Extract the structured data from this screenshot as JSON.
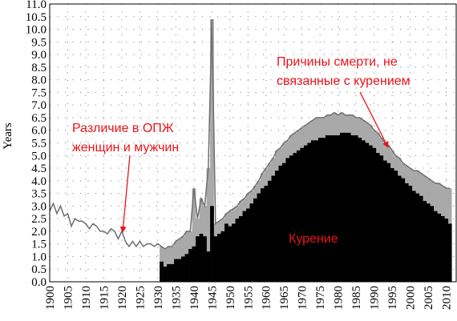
{
  "chart_data": {
    "type": "bar",
    "y_label": "Years",
    "xlim": [
      1900,
      2013
    ],
    "xticks": [
      1900,
      1905,
      1910,
      1915,
      1920,
      1925,
      1930,
      1935,
      1940,
      1945,
      1950,
      1955,
      1960,
      1965,
      1970,
      1975,
      1980,
      1985,
      1990,
      1995,
      2000,
      2005,
      2010
    ],
    "ylim": [
      0,
      11
    ],
    "yticks": [
      {
        "value": 0,
        "label": "0.0"
      },
      {
        "value": 0.5,
        "label": "0.5"
      },
      {
        "value": 1,
        "label": "1.0"
      },
      {
        "value": 1.5,
        "label": "1.5"
      },
      {
        "value": 2,
        "label": "2.0"
      },
      {
        "value": 2.5,
        "label": "2.5"
      },
      {
        "value": 3,
        "label": "3.0"
      },
      {
        "value": 3.5,
        "label": "3.5"
      },
      {
        "value": 4,
        "label": "4.0"
      },
      {
        "value": 4.5,
        "label": "4.5"
      },
      {
        "value": 5,
        "label": "5.0"
      },
      {
        "value": 5.5,
        "label": "5.5"
      },
      {
        "value": 6,
        "label": "6.0"
      },
      {
        "value": 6.5,
        "label": "6.5"
      },
      {
        "value": 7,
        "label": "7.0"
      },
      {
        "value": 7.5,
        "label": "7.5"
      },
      {
        "value": 8,
        "label": "8.0"
      },
      {
        "value": 8.5,
        "label": "8.5"
      },
      {
        "value": 9,
        "label": "9.0"
      },
      {
        "value": 9.5,
        "label": "9.5"
      },
      {
        "value": 10,
        "label": "10.0"
      },
      {
        "value": 10.5,
        "label": "10.5"
      },
      {
        "value": 11,
        "label": "11.0"
      }
    ],
    "grid": true,
    "x": [
      1900,
      1901,
      1902,
      1903,
      1904,
      1905,
      1906,
      1907,
      1908,
      1909,
      1910,
      1911,
      1912,
      1913,
      1914,
      1915,
      1916,
      1917,
      1918,
      1919,
      1920,
      1921,
      1922,
      1923,
      1924,
      1925,
      1926,
      1927,
      1928,
      1929,
      1930,
      1931,
      1932,
      1933,
      1934,
      1935,
      1936,
      1937,
      1938,
      1939,
      1940,
      1941,
      1942,
      1943,
      1944,
      1945,
      1946,
      1947,
      1948,
      1949,
      1950,
      1951,
      1952,
      1953,
      1954,
      1955,
      1956,
      1957,
      1958,
      1959,
      1960,
      1961,
      1962,
      1963,
      1964,
      1965,
      1966,
      1967,
      1968,
      1969,
      1970,
      1971,
      1972,
      1973,
      1974,
      1975,
      1976,
      1977,
      1978,
      1979,
      1980,
      1981,
      1982,
      1983,
      1984,
      1985,
      1986,
      1987,
      1988,
      1989,
      1990,
      1991,
      1992,
      1993,
      1994,
      1995,
      1996,
      1997,
      1998,
      1999,
      2000,
      2001,
      2002,
      2003,
      2004,
      2005,
      2006,
      2007,
      2008,
      2009,
      2010,
      2011
    ],
    "series": [
      {
        "color": "#a9a9a9",
        "line_color": "#6e6e6e",
        "values": [
          2.8,
          3.1,
          2.7,
          3.0,
          2.6,
          2.7,
          2.2,
          2.5,
          2.4,
          2.4,
          2.3,
          2.1,
          2.3,
          2.2,
          2.0,
          2.0,
          1.9,
          2.1,
          2.0,
          1.7,
          2.0,
          1.6,
          1.4,
          1.6,
          1.4,
          1.6,
          1.4,
          1.5,
          1.5,
          1.4,
          1.5,
          1.4,
          1.3,
          1.4,
          1.4,
          1.6,
          1.7,
          1.8,
          2.0,
          2.0,
          3.7,
          2.5,
          3.3,
          3.0,
          4.5,
          10.4,
          2.3,
          2.4,
          2.5,
          2.7,
          2.8,
          2.9,
          3.0,
          3.2,
          3.3,
          3.5,
          3.6,
          3.8,
          4.0,
          4.3,
          4.5,
          4.7,
          4.9,
          5.2,
          5.3,
          5.5,
          5.6,
          5.8,
          5.9,
          6.0,
          6.1,
          6.2,
          6.3,
          6.4,
          6.5,
          6.5,
          6.5,
          6.6,
          6.6,
          6.7,
          6.6,
          6.7,
          6.6,
          6.6,
          6.6,
          6.5,
          6.5,
          6.4,
          6.3,
          6.2,
          6.0,
          5.9,
          5.7,
          5.5,
          5.4,
          5.2,
          5.0,
          4.9,
          4.7,
          4.6,
          4.5,
          4.4,
          4.4,
          4.3,
          4.2,
          4.1,
          4.0,
          3.9,
          3.9,
          3.8,
          3.7,
          3.7
        ]
      },
      {
        "color": "#000000",
        "values": [
          null,
          null,
          null,
          null,
          null,
          null,
          null,
          null,
          null,
          null,
          null,
          null,
          null,
          null,
          null,
          null,
          null,
          null,
          null,
          null,
          null,
          null,
          null,
          null,
          null,
          null,
          null,
          null,
          null,
          null,
          null,
          0.8,
          0.6,
          0.7,
          0.7,
          0.9,
          0.9,
          1.0,
          1.1,
          1.3,
          1.4,
          1.8,
          1.9,
          1.8,
          1.2,
          3.0,
          1.8,
          1.9,
          2.0,
          2.3,
          2.2,
          2.3,
          2.5,
          2.6,
          2.8,
          2.9,
          3.1,
          3.3,
          3.5,
          3.7,
          3.8,
          4.0,
          4.2,
          4.4,
          4.6,
          4.7,
          4.9,
          5.0,
          5.1,
          5.2,
          5.3,
          5.4,
          5.5,
          5.6,
          5.6,
          5.7,
          5.7,
          5.8,
          5.8,
          5.8,
          5.8,
          5.9,
          5.9,
          5.9,
          5.8,
          5.8,
          5.7,
          5.6,
          5.5,
          5.4,
          5.3,
          5.1,
          5.0,
          4.8,
          4.7,
          4.5,
          4.4,
          4.2,
          4.1,
          3.9,
          3.8,
          3.6,
          3.5,
          3.4,
          3.2,
          3.1,
          3.0,
          2.8,
          2.7,
          2.6,
          2.5,
          2.3
        ]
      }
    ],
    "annotations": [
      {
        "lines": [
          "Различие в ОПЖ",
          "женщин и мужчин"
        ],
        "color": "#e8141a"
      },
      {
        "lines": [
          "Причины смерти, не",
          "связанные с курением"
        ],
        "color": "#e8141a"
      },
      {
        "lines": [
          "Курение"
        ],
        "color": "#e8141a"
      }
    ]
  }
}
